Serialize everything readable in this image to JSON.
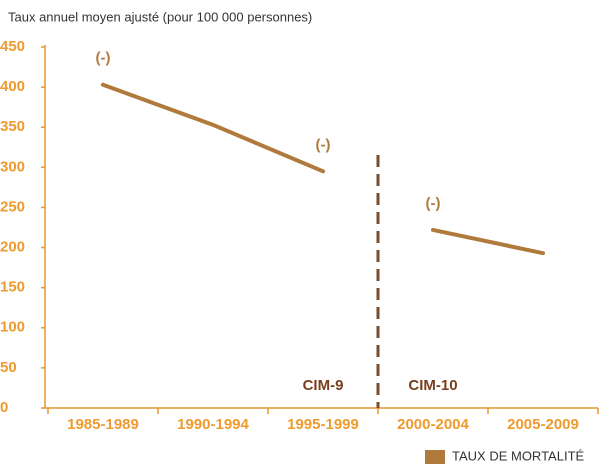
{
  "chart_data": {
    "type": "line",
    "subtitle": "Taux annuel moyen ajusté (pour 100 000 personnes)",
    "categories": [
      "1985-1989",
      "1990-1994",
      "1995-1999",
      "2000-2004",
      "2005-2009"
    ],
    "series": [
      {
        "name": "TAUX DE MORTALITÉ",
        "color": "#b07a3c",
        "values": [
          403,
          353,
          295,
          222,
          193
        ]
      }
    ],
    "point_labels": [
      "(-)",
      null,
      "(-)",
      "(-)",
      null
    ],
    "divider_after": 2,
    "annotations": [
      "CIM-9",
      "CIM-10"
    ],
    "ylim": [
      0,
      450
    ],
    "yticks": [
      0,
      50,
      100,
      150,
      200,
      250,
      300,
      350,
      400,
      450
    ],
    "legend": "bottom-right"
  }
}
